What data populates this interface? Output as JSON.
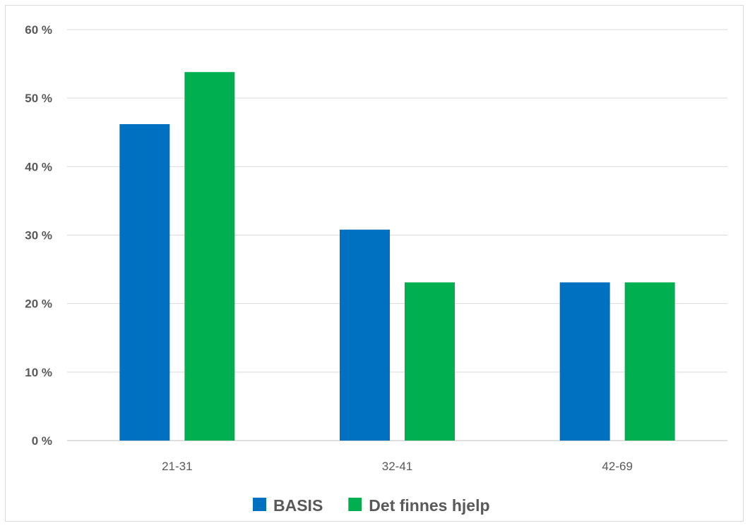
{
  "chart_data": {
    "type": "bar",
    "categories": [
      "21-31",
      "32-41",
      "42-69"
    ],
    "series": [
      {
        "name": "BASIS",
        "values": [
          46.2,
          30.8,
          23.1
        ],
        "color": "#0070c0"
      },
      {
        "name": "Det finnes hjelp",
        "values": [
          53.8,
          23.1,
          23.1
        ],
        "color": "#00b050"
      }
    ],
    "y_ticks": [
      "0 %",
      "10 %",
      "20 %",
      "30 %",
      "40 %",
      "50 %",
      "60 %"
    ],
    "ylim": [
      0,
      60
    ],
    "grid": true,
    "legend_position": "bottom",
    "title": "",
    "xlabel": "",
    "ylabel": ""
  }
}
